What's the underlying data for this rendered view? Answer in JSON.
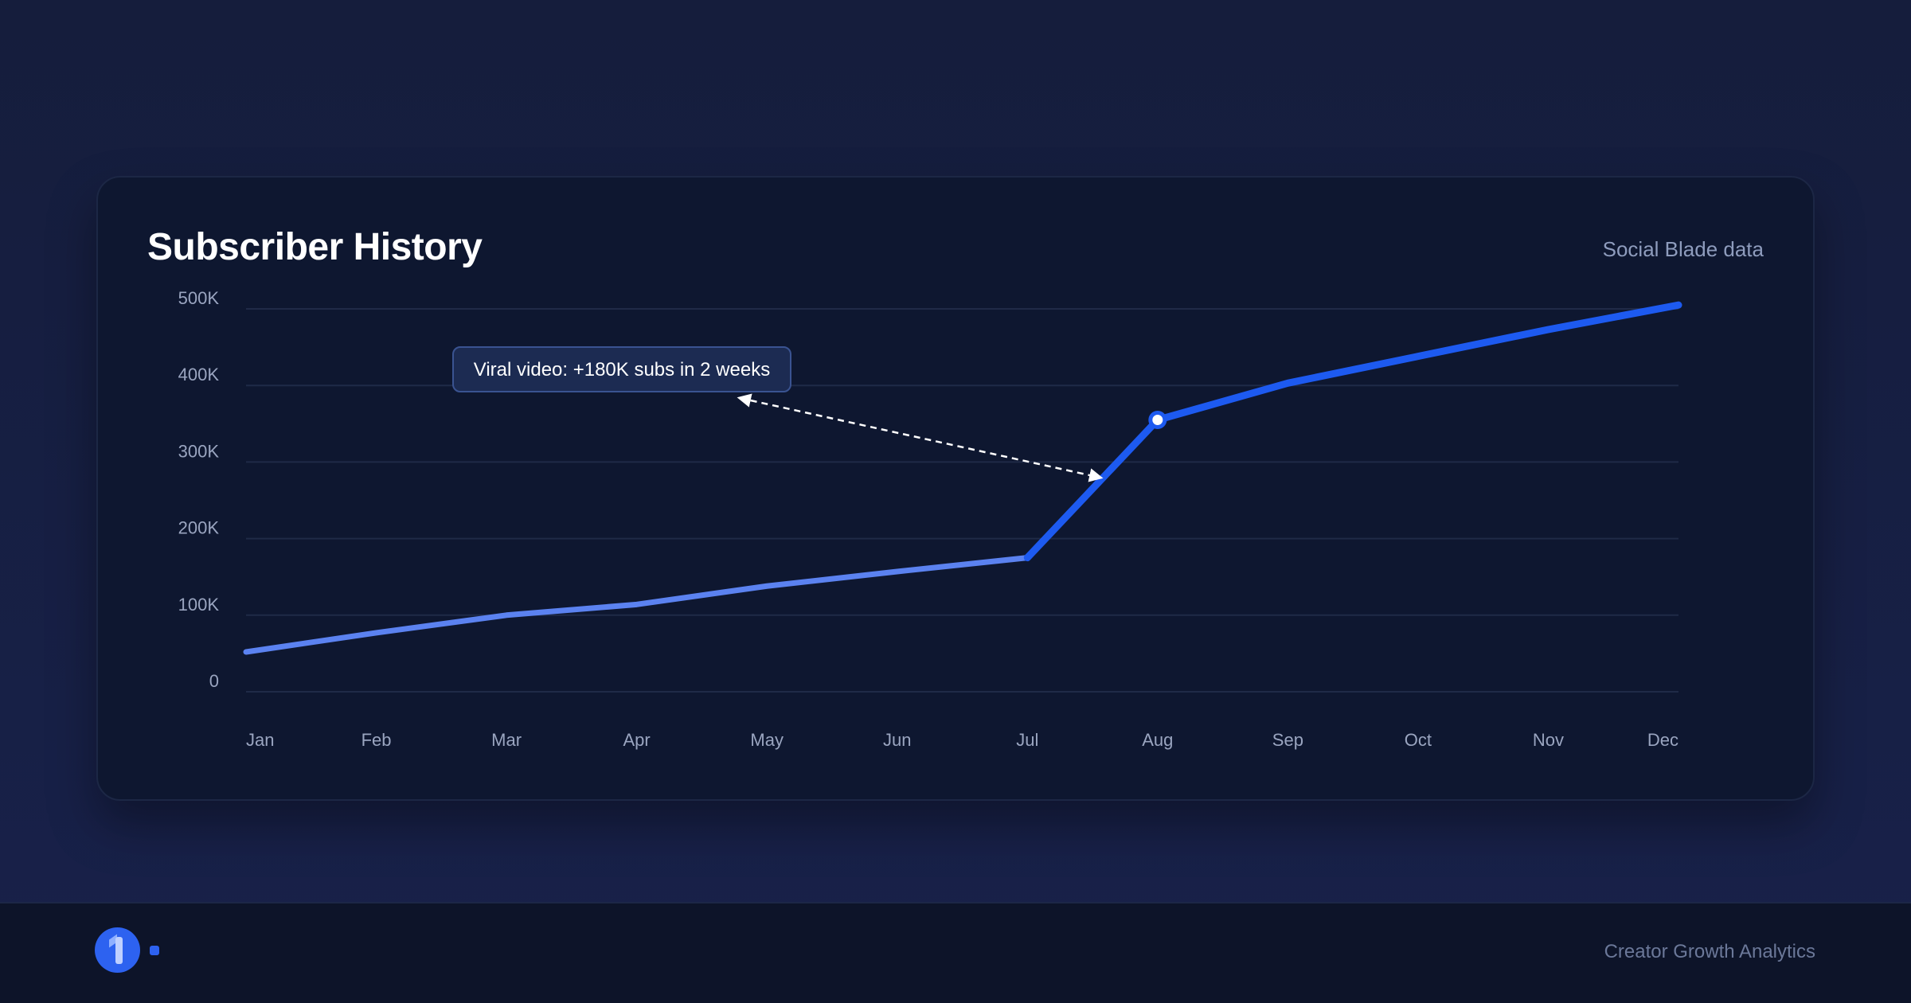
{
  "card": {
    "title": "Subscriber History",
    "source": "Social Blade data"
  },
  "footer": {
    "brand_text": "Creator Growth Analytics",
    "logo_icon": "brand-logo-icon"
  },
  "colors": {
    "line_early": "#5b82f0",
    "line_late": "#1d5af0",
    "grid": "#1f2a47",
    "tick": "#9aa5c0",
    "annotation_bg": "#1c2b52",
    "annotation_border": "#3a5391"
  },
  "chart_data": {
    "type": "line",
    "title": "Subscriber History",
    "xlabel": "",
    "ylabel": "",
    "categories": [
      "Jan",
      "Feb",
      "Mar",
      "Apr",
      "May",
      "Jun",
      "Jul",
      "Aug",
      "Sep",
      "Oct",
      "Nov",
      "Dec"
    ],
    "series": [
      {
        "values": [
          52000,
          77000,
          100000,
          114000,
          138000,
          157000,
          175000,
          355000,
          403000,
          438000,
          473000,
          505000
        ]
      }
    ],
    "ylim": [
      0,
      500000
    ],
    "yticks": [
      0,
      100000,
      200000,
      300000,
      400000,
      500000
    ],
    "ytick_labels": [
      "0",
      "100K",
      "200K",
      "300K",
      "400K",
      "500K"
    ],
    "grid": true,
    "highlight_index": 7,
    "annotation": {
      "text": "Viral video: +180K subs in 2 weeks",
      "points_to": [
        "Jul",
        "Aug"
      ]
    }
  }
}
